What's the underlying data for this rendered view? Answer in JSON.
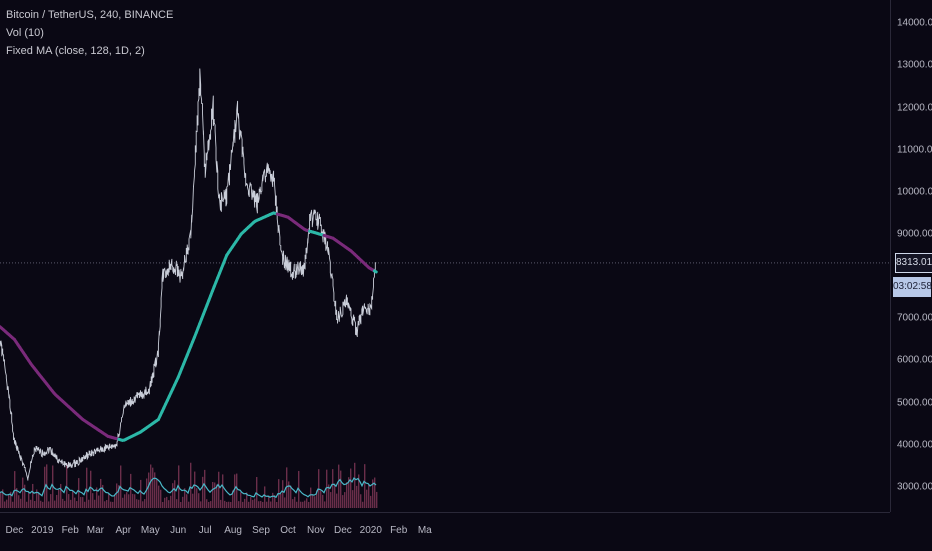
{
  "legend": {
    "symbol": "Bitcoin / TetherUS, 240, BINANCE",
    "volume": "Vol (10)",
    "indicator": "Fixed MA (close, 128, 1D, 2)"
  },
  "last_price_label": "8313.01",
  "countdown_label": "03:02:58",
  "colors": {
    "background": "#0a0814",
    "price_line": "#c9cdd8",
    "ma_below": "#2cb8a8",
    "ma_above": "#7a2a7a",
    "volume_bar": "#6a2e4a",
    "volume_ma": "#4ab8c8"
  },
  "chart_data": {
    "type": "line",
    "x_ticks": [
      "Dec",
      "2019",
      "Feb",
      "Mar",
      "Apr",
      "May",
      "Jun",
      "Jul",
      "Aug",
      "Sep",
      "Oct",
      "Nov",
      "Dec",
      "2020",
      "Feb",
      "Ma"
    ],
    "y_ticks": [
      "14000.00",
      "13000.00",
      "12000.00",
      "11000.00",
      "10000.00",
      "9000.00",
      "7000.00",
      "6000.00",
      "5000.00",
      "4000.00",
      "3000.00"
    ],
    "ylim": [
      2500,
      14500
    ],
    "last_price": 8313.01,
    "series": [
      {
        "name": "Bitcoin / TetherUS",
        "x": [
          "2018-11-15",
          "2018-11-22",
          "2018-12-01",
          "2018-12-10",
          "2018-12-16",
          "2018-12-24",
          "2019-01-01",
          "2019-01-10",
          "2019-01-20",
          "2019-02-01",
          "2019-02-10",
          "2019-02-25",
          "2019-03-10",
          "2019-03-25",
          "2019-04-02",
          "2019-04-15",
          "2019-04-30",
          "2019-05-10",
          "2019-05-15",
          "2019-05-25",
          "2019-06-05",
          "2019-06-15",
          "2019-06-26",
          "2019-07-01",
          "2019-07-10",
          "2019-07-17",
          "2019-07-25",
          "2019-08-06",
          "2019-08-15",
          "2019-08-28",
          "2019-09-05",
          "2019-09-15",
          "2019-09-24",
          "2019-10-05",
          "2019-10-20",
          "2019-10-26",
          "2019-11-05",
          "2019-11-15",
          "2019-11-25",
          "2019-12-05",
          "2019-12-17",
          "2019-12-25",
          "2020-01-01",
          "2020-01-07"
        ],
        "y": [
          6500,
          5700,
          4100,
          3600,
          3200,
          3900,
          3800,
          3900,
          3600,
          3500,
          3600,
          3800,
          3900,
          4000,
          4900,
          5100,
          5300,
          6200,
          8000,
          8300,
          8000,
          8900,
          12800,
          10500,
          12000,
          9700,
          9900,
          11900,
          10300,
          9700,
          10500,
          10300,
          8500,
          8100,
          8200,
          9400,
          9300,
          8600,
          7000,
          7400,
          6700,
          7300,
          7200,
          8313
        ]
      },
      {
        "name": "Fixed MA",
        "x": [
          "2018-11-15",
          "2018-12-01",
          "2018-12-20",
          "2019-01-15",
          "2019-02-15",
          "2019-03-15",
          "2019-04-01",
          "2019-04-20",
          "2019-05-10",
          "2019-06-01",
          "2019-06-20",
          "2019-07-10",
          "2019-07-25",
          "2019-08-10",
          "2019-08-25",
          "2019-09-15",
          "2019-10-01",
          "2019-10-20",
          "2019-11-05",
          "2019-11-20",
          "2019-12-10",
          "2019-12-30",
          "2020-01-07"
        ],
        "y": [
          6800,
          6500,
          5900,
          5200,
          4600,
          4200,
          4100,
          4300,
          4600,
          5600,
          6600,
          7700,
          8500,
          9000,
          9300,
          9500,
          9400,
          9100,
          9000,
          8900,
          8600,
          8200,
          8100
        ]
      }
    ]
  }
}
